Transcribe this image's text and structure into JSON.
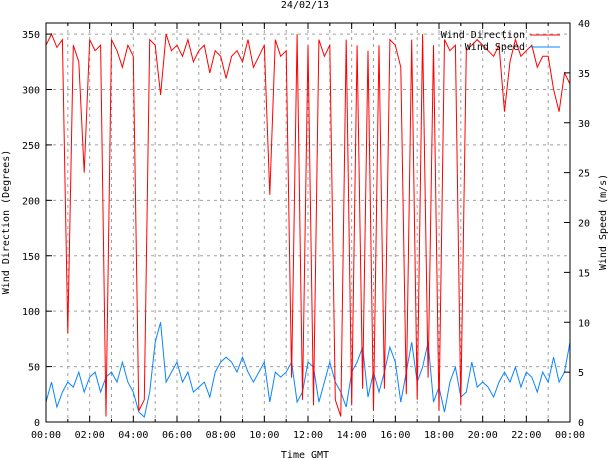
{
  "chart_data": {
    "type": "line",
    "title": "24/02/13",
    "xlabel": "Time GMT",
    "ylabel": "Wind Direction (Degrees)",
    "y2label": "Wind Speed (m/s)",
    "xlim_hours": [
      0,
      24
    ],
    "ylim": [
      0,
      360
    ],
    "y2lim": [
      0,
      40
    ],
    "x_ticks": [
      "00:00",
      "02:00",
      "04:00",
      "06:00",
      "08:00",
      "10:00",
      "12:00",
      "14:00",
      "16:00",
      "18:00",
      "20:00",
      "22:00",
      "00:00"
    ],
    "y_ticks": [
      0,
      50,
      100,
      150,
      200,
      250,
      300,
      350
    ],
    "y2_ticks": [
      0,
      5,
      10,
      15,
      20,
      25,
      30,
      35,
      40
    ],
    "grid": true,
    "legend_position": "top-right",
    "x_step_hours": 0.25,
    "series": [
      {
        "name": "Wind Direction",
        "axis": "y",
        "color": "#ff0000",
        "values": [
          340,
          350,
          338,
          345,
          80,
          340,
          325,
          225,
          345,
          335,
          340,
          5,
          345,
          335,
          320,
          340,
          330,
          10,
          20,
          345,
          340,
          295,
          350,
          335,
          340,
          330,
          345,
          325,
          335,
          340,
          315,
          335,
          330,
          310,
          330,
          335,
          325,
          345,
          320,
          330,
          340,
          205,
          345,
          330,
          335,
          40,
          350,
          20,
          340,
          15,
          345,
          330,
          340,
          20,
          5,
          345,
          15,
          340,
          30,
          335,
          10,
          340,
          30,
          345,
          340,
          320,
          25,
          345,
          20,
          350,
          40,
          340,
          10,
          345,
          335,
          340,
          15,
          335,
          340,
          345,
          340,
          335,
          330,
          340,
          280,
          325,
          345,
          330,
          335,
          340,
          320,
          330,
          330,
          300,
          280,
          315,
          305
        ]
      },
      {
        "name": "Wind Speed",
        "axis": "y2",
        "color": "#0a84ff",
        "values": [
          2,
          4,
          1.5,
          3,
          4,
          3.5,
          5,
          3,
          4.5,
          5,
          3,
          4.5,
          5,
          4,
          6,
          4,
          3,
          1,
          0.5,
          3,
          8,
          10,
          4,
          5,
          6,
          4,
          5,
          3,
          3.5,
          4,
          2.5,
          5,
          6,
          6.5,
          6,
          5,
          6.5,
          5,
          4,
          5,
          6,
          2,
          5,
          4.5,
          5,
          6,
          2,
          3,
          6,
          5.5,
          2,
          4,
          6,
          4,
          3,
          1.5,
          5,
          6,
          7.5,
          2.5,
          5,
          3,
          5,
          7.5,
          6,
          2,
          5,
          8,
          4,
          5.5,
          8,
          2,
          3.5,
          1,
          4,
          5.5,
          2.5,
          3,
          6,
          3.5,
          4,
          3.5,
          2.5,
          4,
          5,
          4,
          5.5,
          3.5,
          5,
          4.5,
          3,
          5,
          4,
          6.5,
          4,
          5,
          8
        ]
      }
    ]
  }
}
